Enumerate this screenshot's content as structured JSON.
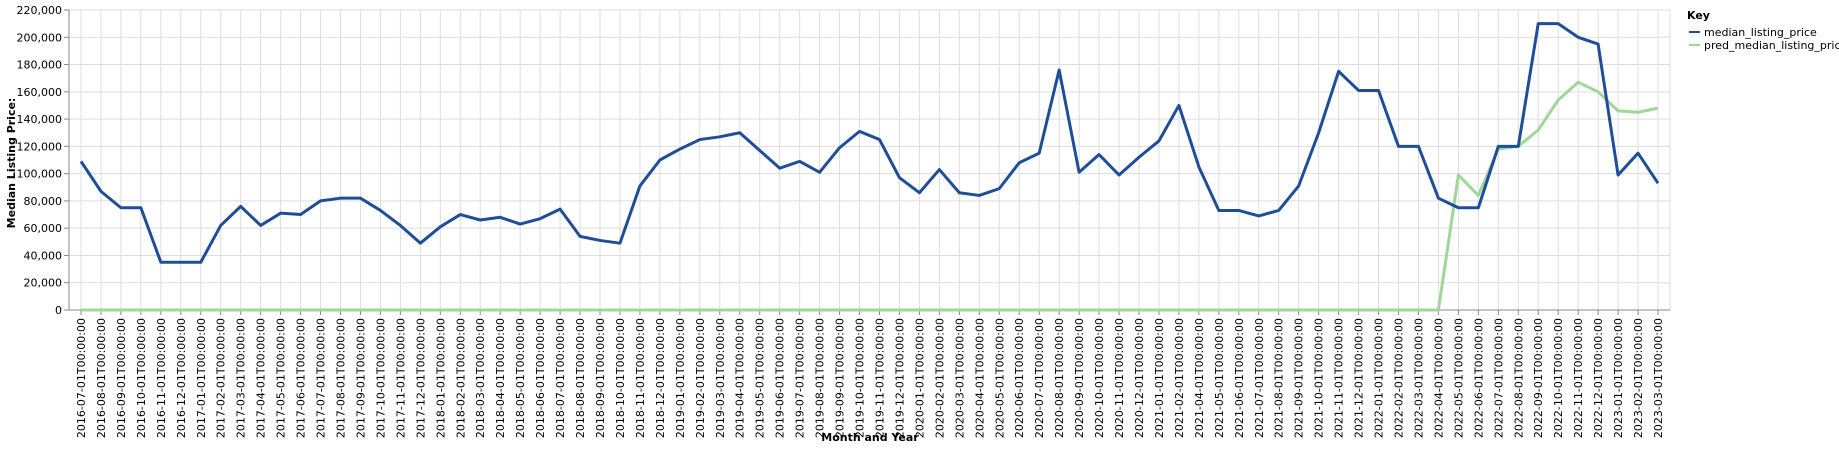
{
  "chart_data": {
    "type": "line",
    "xlabel": "Month and Year",
    "ylabel": "Median Listing Price:",
    "ylim": [
      0,
      220000
    ],
    "yticks": [
      "0",
      "20,000",
      "40,000",
      "60,000",
      "80,000",
      "100,000",
      "120,000",
      "140,000",
      "160,000",
      "180,000",
      "200,000",
      "220,000"
    ],
    "grid": true,
    "legend": {
      "title": "Key",
      "position": "top-right"
    },
    "x": [
      "2016-07-01T00:00:00",
      "2016-08-01T00:00:00",
      "2016-09-01T00:00:00",
      "2016-10-01T00:00:00",
      "2016-11-01T00:00:00",
      "2016-12-01T00:00:00",
      "2017-01-01T00:00:00",
      "2017-02-01T00:00:00",
      "2017-03-01T00:00:00",
      "2017-04-01T00:00:00",
      "2017-05-01T00:00:00",
      "2017-06-01T00:00:00",
      "2017-07-01T00:00:00",
      "2017-08-01T00:00:00",
      "2017-09-01T00:00:00",
      "2017-10-01T00:00:00",
      "2017-11-01T00:00:00",
      "2017-12-01T00:00:00",
      "2018-01-01T00:00:00",
      "2018-02-01T00:00:00",
      "2018-03-01T00:00:00",
      "2018-04-01T00:00:00",
      "2018-05-01T00:00:00",
      "2018-06-01T00:00:00",
      "2018-07-01T00:00:00",
      "2018-08-01T00:00:00",
      "2018-09-01T00:00:00",
      "2018-10-01T00:00:00",
      "2018-11-01T00:00:00",
      "2018-12-01T00:00:00",
      "2019-01-01T00:00:00",
      "2019-02-01T00:00:00",
      "2019-03-01T00:00:00",
      "2019-04-01T00:00:00",
      "2019-05-01T00:00:00",
      "2019-06-01T00:00:00",
      "2019-07-01T00:00:00",
      "2019-08-01T00:00:00",
      "2019-09-01T00:00:00",
      "2019-10-01T00:00:00",
      "2019-11-01T00:00:00",
      "2019-12-01T00:00:00",
      "2020-01-01T00:00:00",
      "2020-02-01T00:00:00",
      "2020-03-01T00:00:00",
      "2020-04-01T00:00:00",
      "2020-05-01T00:00:00",
      "2020-06-01T00:00:00",
      "2020-07-01T00:00:00",
      "2020-08-01T00:00:00",
      "2020-09-01T00:00:00",
      "2020-10-01T00:00:00",
      "2020-11-01T00:00:00",
      "2020-12-01T00:00:00",
      "2021-01-01T00:00:00",
      "2021-02-01T00:00:00",
      "2021-04-01T00:00:00",
      "2021-05-01T00:00:00",
      "2021-06-01T00:00:00",
      "2021-07-01T00:00:00",
      "2021-08-01T00:00:00",
      "2021-09-01T00:00:00",
      "2021-10-01T00:00:00",
      "2021-11-01T00:00:00",
      "2021-12-01T00:00:00",
      "2022-01-01T00:00:00",
      "2022-02-01T00:00:00",
      "2022-03-01T00:00:00",
      "2022-04-01T00:00:00",
      "2022-05-01T00:00:00",
      "2022-06-01T00:00:00",
      "2022-07-01T00:00:00",
      "2022-08-01T00:00:00",
      "2022-09-01T00:00:00",
      "2022-10-01T00:00:00",
      "2022-11-01T00:00:00",
      "2022-12-01T00:00:00",
      "2023-01-01T00:00:00",
      "2023-02-01T00:00:00",
      "2023-03-01T00:00:00"
    ],
    "series": [
      {
        "name": "median_listing_price",
        "color": "#1f4e99",
        "values": [
          109000,
          87000,
          75000,
          75000,
          35000,
          35000,
          35000,
          62000,
          76000,
          62000,
          71000,
          70000,
          80000,
          82000,
          82000,
          73000,
          62000,
          49000,
          61000,
          70000,
          66000,
          68000,
          63000,
          67000,
          74000,
          54000,
          51000,
          49000,
          91000,
          110000,
          118000,
          125000,
          127000,
          130000,
          117000,
          104000,
          109000,
          101000,
          119000,
          131000,
          125000,
          97000,
          86000,
          103000,
          86000,
          84000,
          89000,
          108000,
          115000,
          176000,
          101000,
          114000,
          99000,
          112000,
          124000,
          150000,
          105000,
          73000,
          73000,
          69000,
          73000,
          91000,
          130000,
          175000,
          161000,
          161000,
          120000,
          120000,
          82000,
          75000,
          75000,
          120000,
          120000,
          210000,
          210000,
          200000,
          195000,
          99000,
          115000,
          93000
        ]
      },
      {
        "name": "pred_median_listing_price",
        "color": "#9dd89a",
        "values": [
          0,
          0,
          0,
          0,
          0,
          0,
          0,
          0,
          0,
          0,
          0,
          0,
          0,
          0,
          0,
          0,
          0,
          0,
          0,
          0,
          0,
          0,
          0,
          0,
          0,
          0,
          0,
          0,
          0,
          0,
          0,
          0,
          0,
          0,
          0,
          0,
          0,
          0,
          0,
          0,
          0,
          0,
          0,
          0,
          0,
          0,
          0,
          0,
          0,
          0,
          0,
          0,
          0,
          0,
          0,
          0,
          0,
          0,
          0,
          0,
          0,
          0,
          0,
          0,
          0,
          0,
          0,
          0,
          0,
          99000,
          84000,
          118000,
          120000,
          132000,
          154000,
          167000,
          160000,
          146000,
          145000,
          148000
        ]
      }
    ]
  }
}
